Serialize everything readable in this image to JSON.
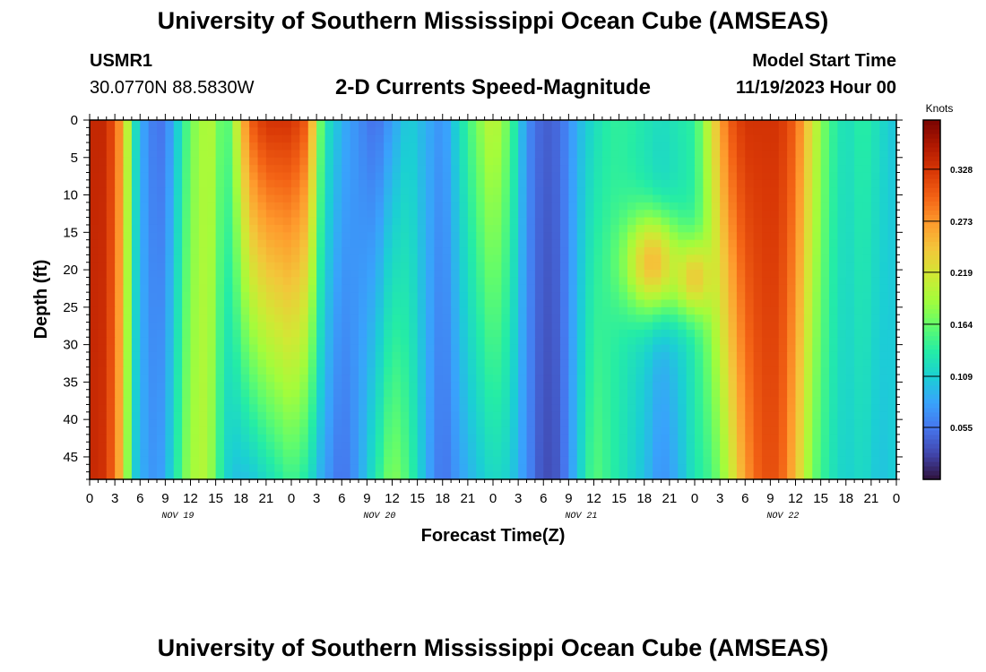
{
  "page": {
    "title_top": "University of Southern Mississippi Ocean Cube (AMSEAS)",
    "title_bottom": "University of Southern Mississippi Ocean Cube (AMSEAS)",
    "station_id": "USMR1",
    "station_coords": "30.0770N  88.5830W",
    "plot_title": "2-D Currents Speed-Magnitude",
    "model_start_label": "Model Start Time",
    "model_start_value": "11/19/2023 Hour 00"
  },
  "chart_data": {
    "type": "heatmap",
    "title": "2-D Currents Speed-Magnitude",
    "xlabel": "Forecast Time(Z)",
    "ylabel": "Depth (ft)",
    "colorbar_label": "Knots",
    "x_range_hours": [
      0,
      96
    ],
    "y_range_ft": [
      0,
      48
    ],
    "x_tick_labels": [
      "0",
      "3",
      "6",
      "9",
      "12",
      "15",
      "18",
      "21",
      "0",
      "3",
      "6",
      "9",
      "12",
      "15",
      "18",
      "21",
      "0",
      "3",
      "6",
      "9",
      "12",
      "15",
      "18",
      "21",
      "0",
      "3",
      "6",
      "9",
      "12",
      "15",
      "18",
      "21",
      "0"
    ],
    "day_labels": [
      "NOV 19",
      "NOV 20",
      "NOV 21",
      "NOV 22"
    ],
    "y_ticks": [
      0,
      5,
      10,
      15,
      20,
      25,
      30,
      35,
      40,
      45
    ],
    "colorbar_ticks": [
      "0.055",
      "0.109",
      "0.164",
      "0.219",
      "0.273",
      "0.328"
    ],
    "colorbar_tick_values": [
      0.055,
      0.109,
      0.164,
      0.219,
      0.273,
      0.328
    ],
    "value_range_knots": [
      0.0,
      0.38
    ],
    "colormap_stops": [
      "#30123b",
      "#4145ab",
      "#4675ed",
      "#39a2fc",
      "#1bcfd4",
      "#24eca6",
      "#61fc6c",
      "#a4fc3b",
      "#d1e834",
      "#f3c63a",
      "#fe9b2d",
      "#f36315",
      "#d93806",
      "#b11901",
      "#7a0402"
    ],
    "profile_columns": [
      {
        "hour": 0,
        "surface": 0.34,
        "bottom": 0.34
      },
      {
        "hour": 2,
        "surface": 0.34,
        "bottom": 0.33
      },
      {
        "hour": 4,
        "surface": 0.26,
        "bottom": 0.24
      },
      {
        "hour": 5,
        "surface": 0.15,
        "bottom": 0.12
      },
      {
        "hour": 6,
        "surface": 0.09,
        "bottom": 0.09
      },
      {
        "hour": 8,
        "surface": 0.05,
        "bottom": 0.07
      },
      {
        "hour": 9,
        "surface": 0.06,
        "bottom": 0.09
      },
      {
        "hour": 10,
        "surface": 0.09,
        "bottom": 0.12
      },
      {
        "hour": 11,
        "surface": 0.13,
        "bottom": 0.16
      },
      {
        "hour": 12,
        "surface": 0.17,
        "bottom": 0.19
      },
      {
        "hour": 14,
        "surface": 0.2,
        "bottom": 0.2
      },
      {
        "hour": 15,
        "surface": 0.19,
        "bottom": 0.16
      },
      {
        "hour": 16,
        "surface": 0.14,
        "bottom": 0.12
      },
      {
        "hour": 17,
        "surface": 0.18,
        "bottom": 0.1
      },
      {
        "hour": 19,
        "surface": 0.3,
        "bottom": 0.1
      },
      {
        "hour": 21,
        "surface": 0.33,
        "bottom": 0.12
      },
      {
        "hour": 24,
        "surface": 0.33,
        "bottom": 0.15
      },
      {
        "hour": 26,
        "surface": 0.3,
        "bottom": 0.13
      },
      {
        "hour": 27,
        "surface": 0.2,
        "bottom": 0.1
      },
      {
        "hour": 28,
        "surface": 0.13,
        "bottom": 0.08
      },
      {
        "hour": 30,
        "surface": 0.09,
        "bottom": 0.05
      },
      {
        "hour": 32,
        "surface": 0.07,
        "bottom": 0.08
      },
      {
        "hour": 34,
        "surface": 0.05,
        "bottom": 0.13
      },
      {
        "hour": 36,
        "surface": 0.08,
        "bottom": 0.18
      },
      {
        "hour": 38,
        "surface": 0.11,
        "bottom": 0.15
      },
      {
        "hour": 40,
        "surface": 0.09,
        "bottom": 0.09
      },
      {
        "hour": 42,
        "surface": 0.07,
        "bottom": 0.05
      },
      {
        "hour": 44,
        "surface": 0.12,
        "bottom": 0.08
      },
      {
        "hour": 46,
        "surface": 0.17,
        "bottom": 0.1
      },
      {
        "hour": 48,
        "surface": 0.21,
        "bottom": 0.12
      },
      {
        "hour": 50,
        "surface": 0.16,
        "bottom": 0.11
      },
      {
        "hour": 52,
        "surface": 0.07,
        "bottom": 0.07
      },
      {
        "hour": 54,
        "surface": 0.04,
        "bottom": 0.03
      },
      {
        "hour": 56,
        "surface": 0.05,
        "bottom": 0.04
      },
      {
        "hour": 58,
        "surface": 0.09,
        "bottom": 0.1
      },
      {
        "hour": 60,
        "surface": 0.12,
        "bottom": 0.16
      },
      {
        "hour": 62,
        "surface": 0.14,
        "bottom": 0.14
      },
      {
        "hour": 64,
        "surface": 0.14,
        "bottom": 0.12
      },
      {
        "hour": 66,
        "surface": 0.13,
        "bottom": 0.1
      },
      {
        "hour": 68,
        "surface": 0.12,
        "bottom": 0.07
      },
      {
        "hour": 70,
        "surface": 0.13,
        "bottom": 0.09
      },
      {
        "hour": 72,
        "surface": 0.14,
        "bottom": 0.13
      },
      {
        "hour": 74,
        "surface": 0.22,
        "bottom": 0.15
      },
      {
        "hour": 76,
        "surface": 0.3,
        "bottom": 0.2
      },
      {
        "hour": 78,
        "surface": 0.33,
        "bottom": 0.27
      },
      {
        "hour": 80,
        "surface": 0.33,
        "bottom": 0.31
      },
      {
        "hour": 82,
        "surface": 0.33,
        "bottom": 0.31
      },
      {
        "hour": 84,
        "surface": 0.3,
        "bottom": 0.25
      },
      {
        "hour": 86,
        "surface": 0.22,
        "bottom": 0.17
      },
      {
        "hour": 88,
        "surface": 0.15,
        "bottom": 0.13
      },
      {
        "hour": 90,
        "surface": 0.12,
        "bottom": 0.11
      },
      {
        "hour": 92,
        "surface": 0.14,
        "bottom": 0.12
      },
      {
        "hour": 94,
        "surface": 0.12,
        "bottom": 0.1
      },
      {
        "hour": 96,
        "surface": 0.1,
        "bottom": 0.11
      }
    ],
    "features": [
      {
        "name": "mid-depth-max-nov21",
        "hour": 67,
        "depth": 19,
        "value": 0.25,
        "spread_h": 3.5,
        "spread_d": 7
      },
      {
        "name": "mid-depth-max-nov21b",
        "hour": 72,
        "depth": 21,
        "value": 0.24,
        "spread_h": 2.5,
        "spread_d": 5
      }
    ]
  }
}
